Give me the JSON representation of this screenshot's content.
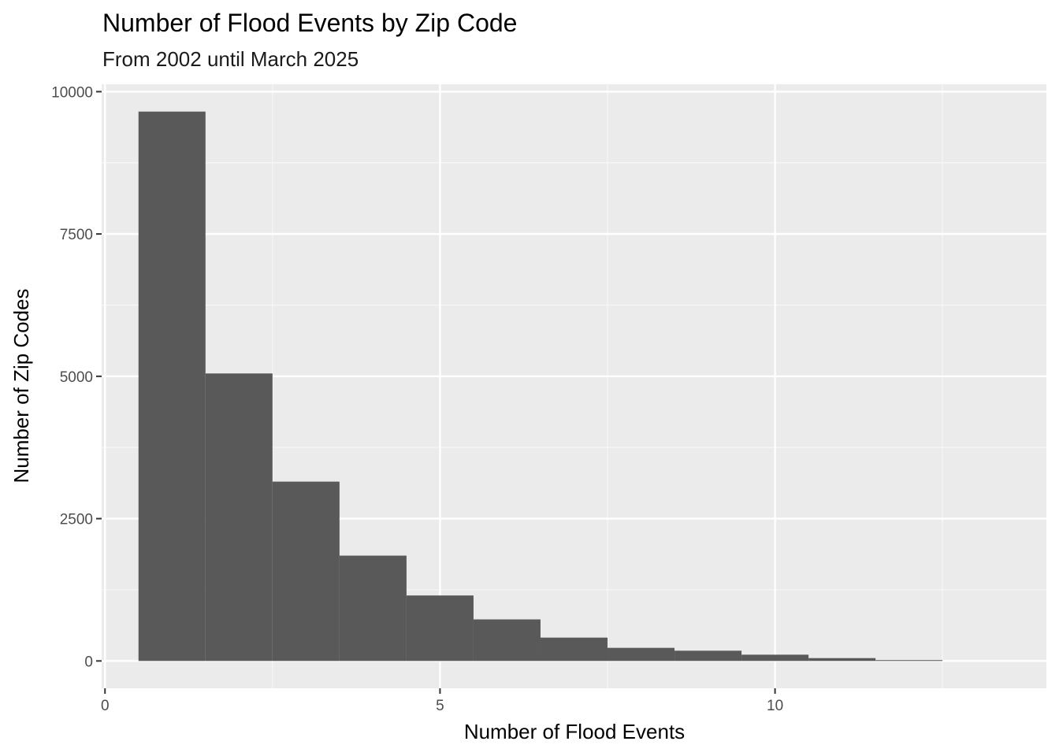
{
  "chart_data": {
    "type": "bar",
    "title": "Number of Flood Events by Zip Code",
    "subtitle": "From 2002 until March 2025",
    "xlabel": "Number of Flood Events",
    "ylabel": "Number of Zip Codes",
    "xlim": [
      -0.05,
      14.05
    ],
    "ylim": [
      -480,
      10130
    ],
    "x_ticks": [
      0,
      5,
      10
    ],
    "x_tick_labels": [
      "0",
      "5",
      "10"
    ],
    "y_ticks": [
      0,
      2500,
      5000,
      7500,
      10000
    ],
    "y_tick_labels": [
      "0",
      "2500",
      "5000",
      "7500",
      "10000"
    ],
    "bin_width": 1,
    "x": [
      1,
      2,
      3,
      4,
      5,
      6,
      7,
      8,
      9,
      10,
      11,
      12
    ],
    "values": [
      9650,
      5050,
      3150,
      1850,
      1150,
      730,
      410,
      230,
      180,
      110,
      50,
      15
    ],
    "grid": true,
    "legend": "none",
    "colors": {
      "panel_background": "#ebebeb",
      "grid_major": "#ffffff",
      "grid_minor": "#f7f7f7",
      "bar_fill": "#595959",
      "tick": "#333333"
    }
  }
}
